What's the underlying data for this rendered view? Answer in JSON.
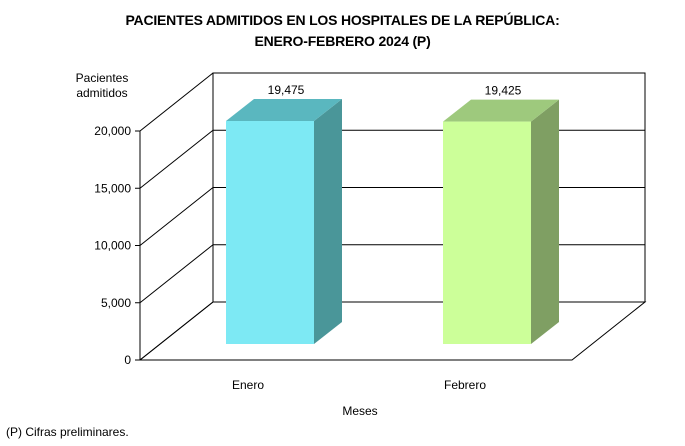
{
  "chart_data": {
    "type": "bar",
    "title_line1": "PACIENTES ADMITIDOS EN LOS HOSPITALES DE LA REPÚBLICA:",
    "title_line2": "ENERO-FEBRERO 2024 (P)",
    "ylabel_line1": "Pacientes",
    "ylabel_line2": "admitidos",
    "xlabel": "Meses",
    "categories": [
      "Enero",
      "Febrero"
    ],
    "values": [
      19475,
      19425
    ],
    "value_labels": [
      "19,475",
      "19,425"
    ],
    "yticks": [
      0,
      5000,
      10000,
      15000,
      20000
    ],
    "ytick_labels": [
      "0",
      "5,000",
      "10,000",
      "15,000",
      "20,000"
    ],
    "ylim": [
      0,
      20000
    ],
    "grid": true,
    "bar_colors": [
      {
        "front": "#7de9f4",
        "side": "#4a9699",
        "top": "#5ab7bf"
      },
      {
        "front": "#ccff99",
        "side": "#7f9f63",
        "top": "#9ec97d"
      }
    ]
  },
  "footnote": "(P) Cifras  preliminares."
}
